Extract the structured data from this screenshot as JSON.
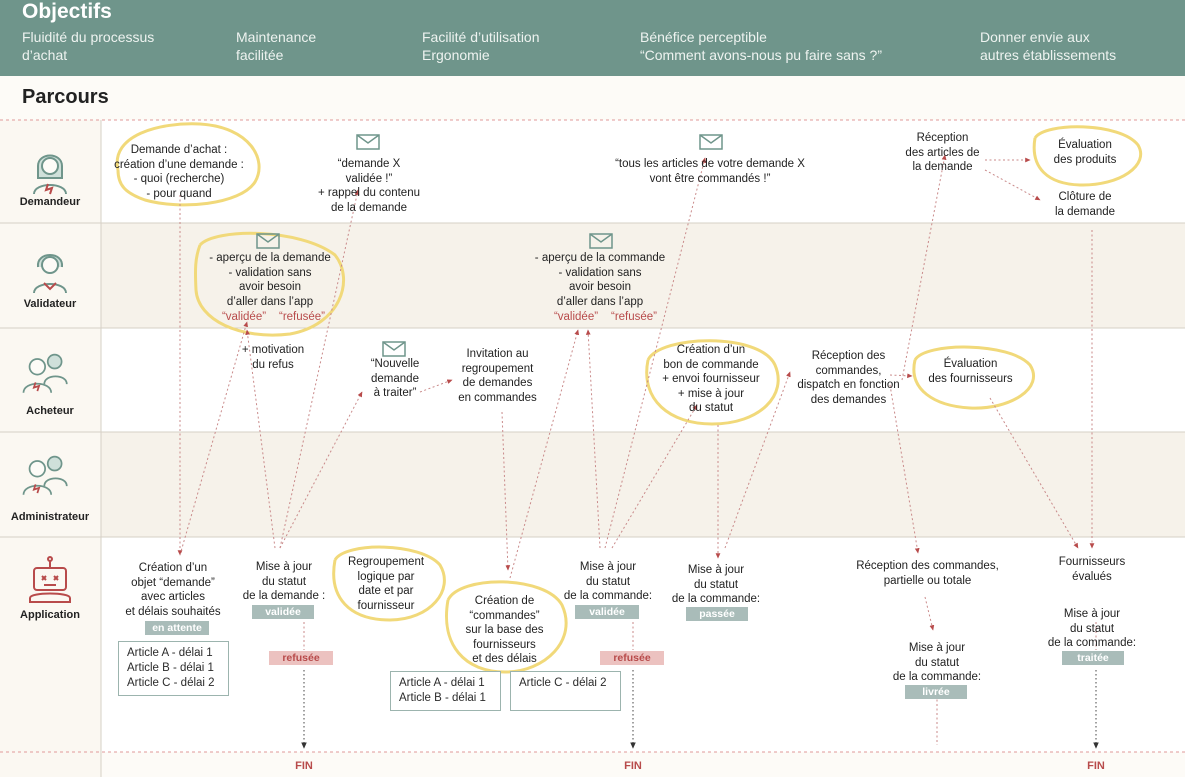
{
  "header": {
    "title": "Objectifs",
    "objectives": [
      "Fluidité du processus\nd’achat",
      "Maintenance\nfacilitée",
      "Facilité d’utilisation\nErgonomie",
      "Bénéfice perceptible\n“Comment avons-nous pu faire sans ?”",
      "Donner envie aux\nautres établissements"
    ]
  },
  "parcours_title": "Parcours",
  "lanes": [
    "Demandeur",
    "Validateur",
    "Acheteur",
    "Administrateur",
    "Application"
  ],
  "icons": {
    "demandeur": "woman-avatar-icon",
    "validateur": "woman-avatar-icon",
    "acheteur": "team-avatar-icon",
    "administrateur": "team-avatar-icon",
    "application": "robot-icon",
    "mail": "envelope-icon"
  },
  "colors": {
    "header_bg": "#6f958b",
    "highlight": "#f1d97a",
    "arrow": "#b84b4b",
    "badge_ok": "#a9bcb9",
    "badge_refused": "#ecc2c0"
  },
  "steps": {
    "demande_achat": "Demande d’achat :\ncréation d’une demande :\n- quoi (recherche)\n- pour quand",
    "mail_validee": "“demande X\nvalidée !”\n+ rappel du contenu\nde la demande",
    "mail_articles": "“tous les articles de votre demande X\nvont être commandés !”",
    "reception_articles": "Réception\ndes articles de\nla demande",
    "evaluation_produits": "Évaluation\ndes produits",
    "cloture": "Clôture de\nla demande",
    "apercu_demande": "- aperçu de la demande\n- validation sans\navoir besoin\nd’aller dans l’app",
    "apercu_commande": "- aperçu de la commande\n- validation sans\navoir besoin\nd’aller dans l’app",
    "choice_validee": "“validée”",
    "choice_refusee": "“refusée”",
    "motivation": "+ motivation\ndu refus",
    "nouvelle_demande": "“Nouvelle\ndemande\nà traiter”",
    "invitation": "Invitation au\nregroupement\nde demandes\nen commandes",
    "creation_bon": "Création d’un\nbon de commande\n+ envoi fournisseur\n+ mise à jour\ndu statut",
    "reception_commandes": "Réception des\ncommandes,\ndispatch en fonction\ndes demandes",
    "evaluation_fournisseurs": "Évaluation\ndes fournisseurs",
    "creation_objet": "Création d’un\nobjet “demande”\navec articles\net délais souhaités",
    "maj_demande": "Mise à jour\ndu statut\nde la demande :",
    "regroupement": "Regroupement\nlogique par\ndate et par\nfournisseur",
    "creation_commandes": "Création de\n“commandes”\nsur la base des\nfournisseurs\net des délais",
    "maj_commande_1": "Mise à jour\ndu statut\nde la commande:",
    "maj_commande_2": "Mise à jour\ndu statut\nde la commande:",
    "reception_partielle": "Réception des commandes,\npartielle ou totale",
    "maj_commande_3": "Mise à jour\ndu statut\nde la commande:",
    "fournisseurs_evalues": "Fournisseurs\névalués",
    "maj_commande_4": "Mise à jour\ndu statut\nde la commande:"
  },
  "badges": {
    "en_attente": "en attente",
    "validee_1": "validée",
    "refusee_1": "refusée",
    "validee_2": "validée",
    "refusee_2": "refusée",
    "passee": "passée",
    "livree": "livrée",
    "traitee": "traitée"
  },
  "boxes": {
    "articles_all": "Article A - délai 1\nArticle  B - délai 1\nArticle C - délai 2",
    "articles_ab": "Article A - délai 1\nArticle  B - délai 1",
    "articles_c": "Article C - délai 2"
  },
  "fin": [
    "FIN",
    "FIN",
    "FIN"
  ]
}
